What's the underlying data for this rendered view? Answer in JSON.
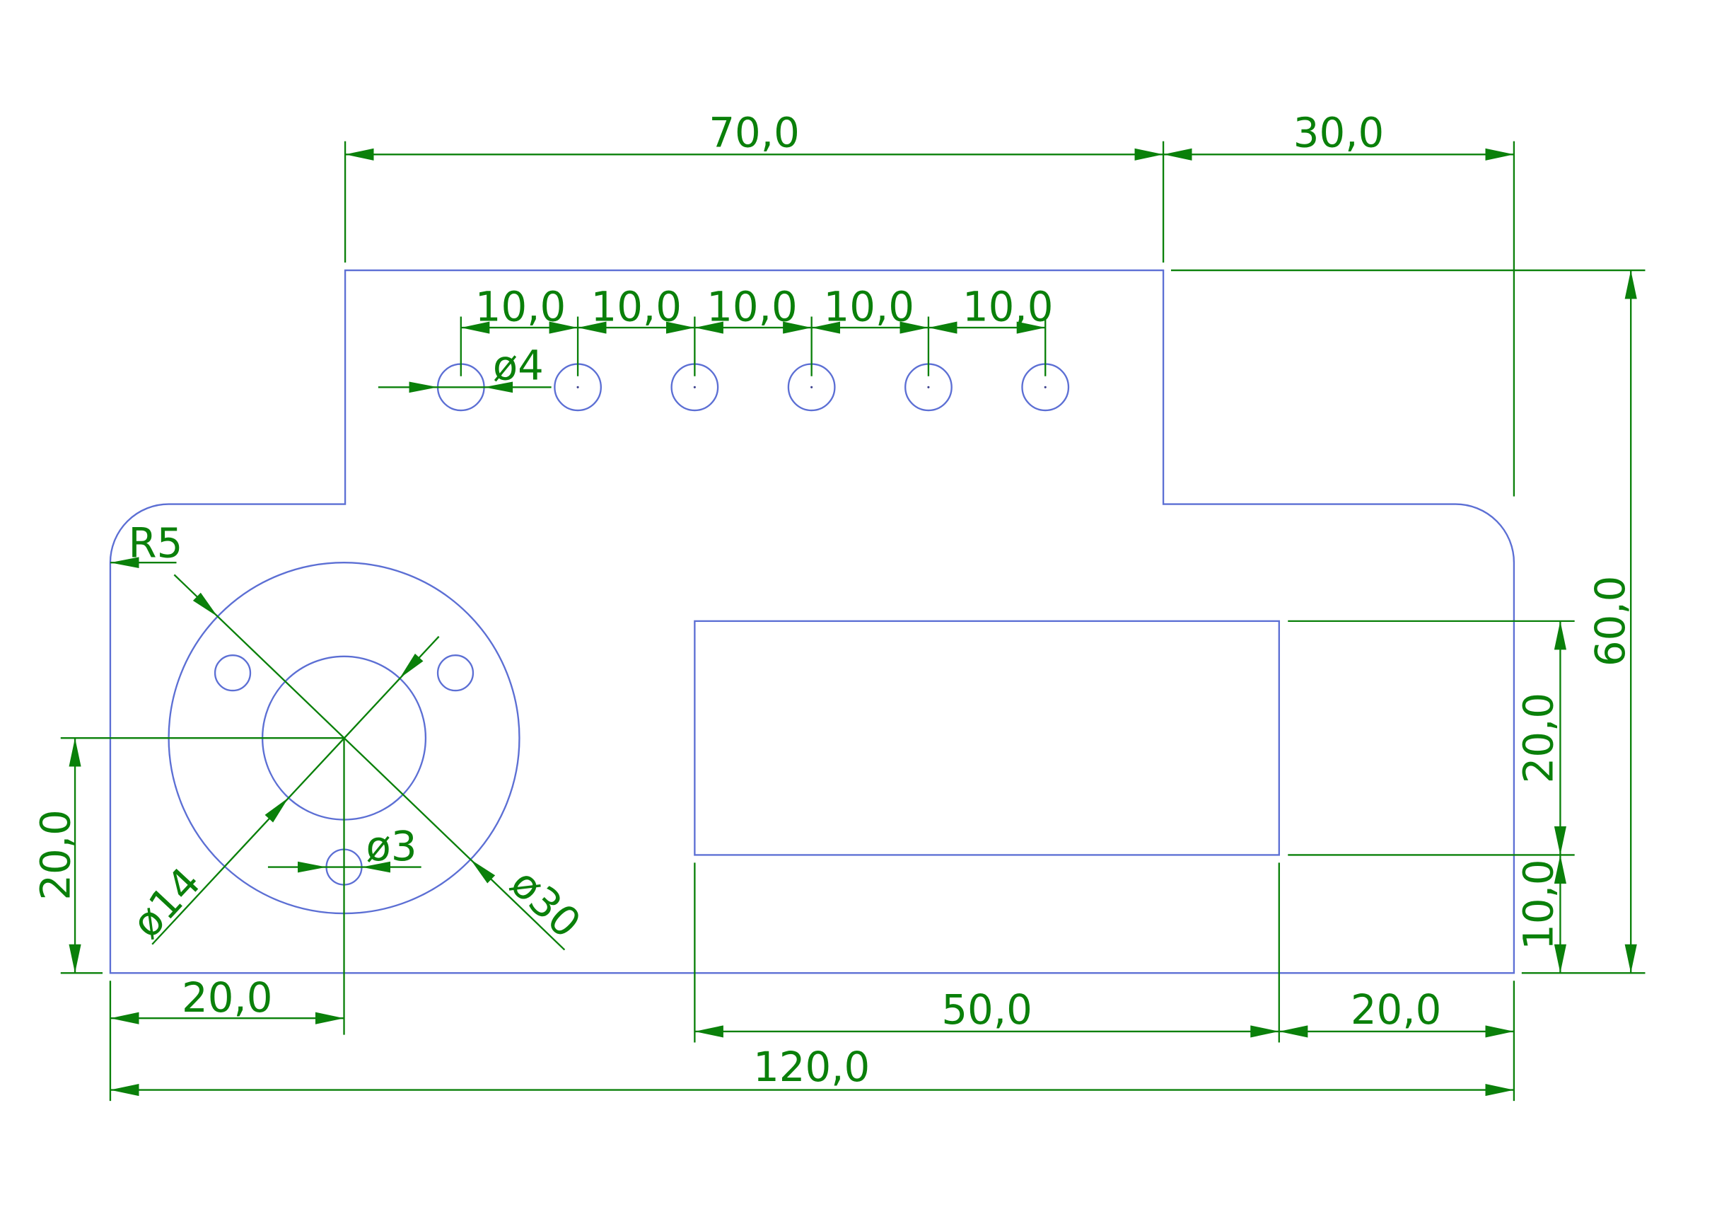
{
  "labels": {
    "top_step_width": "70,0",
    "top_right_width": "30,0",
    "hole_pitch": [
      "10,0",
      "10,0",
      "10,0",
      "10,0",
      "10,0"
    ],
    "hole_diameter": "ø4",
    "corner_radius": "R5",
    "flange_center_height": "20,0",
    "bore_diameter": "ø14",
    "small_hole_diameter": "ø3",
    "flange_diameter": "ø30",
    "flange_center_offset": "20,0",
    "slot_width": "50,0",
    "slot_right_offset": "20,0",
    "overall_width": "120,0",
    "slot_height": "20,0",
    "slot_bottom_offset": "10,0",
    "overall_height": "60,0"
  },
  "colors": {
    "dimension": "#0a800a",
    "outline": "#5c6fd4",
    "background": "#ffffff"
  }
}
